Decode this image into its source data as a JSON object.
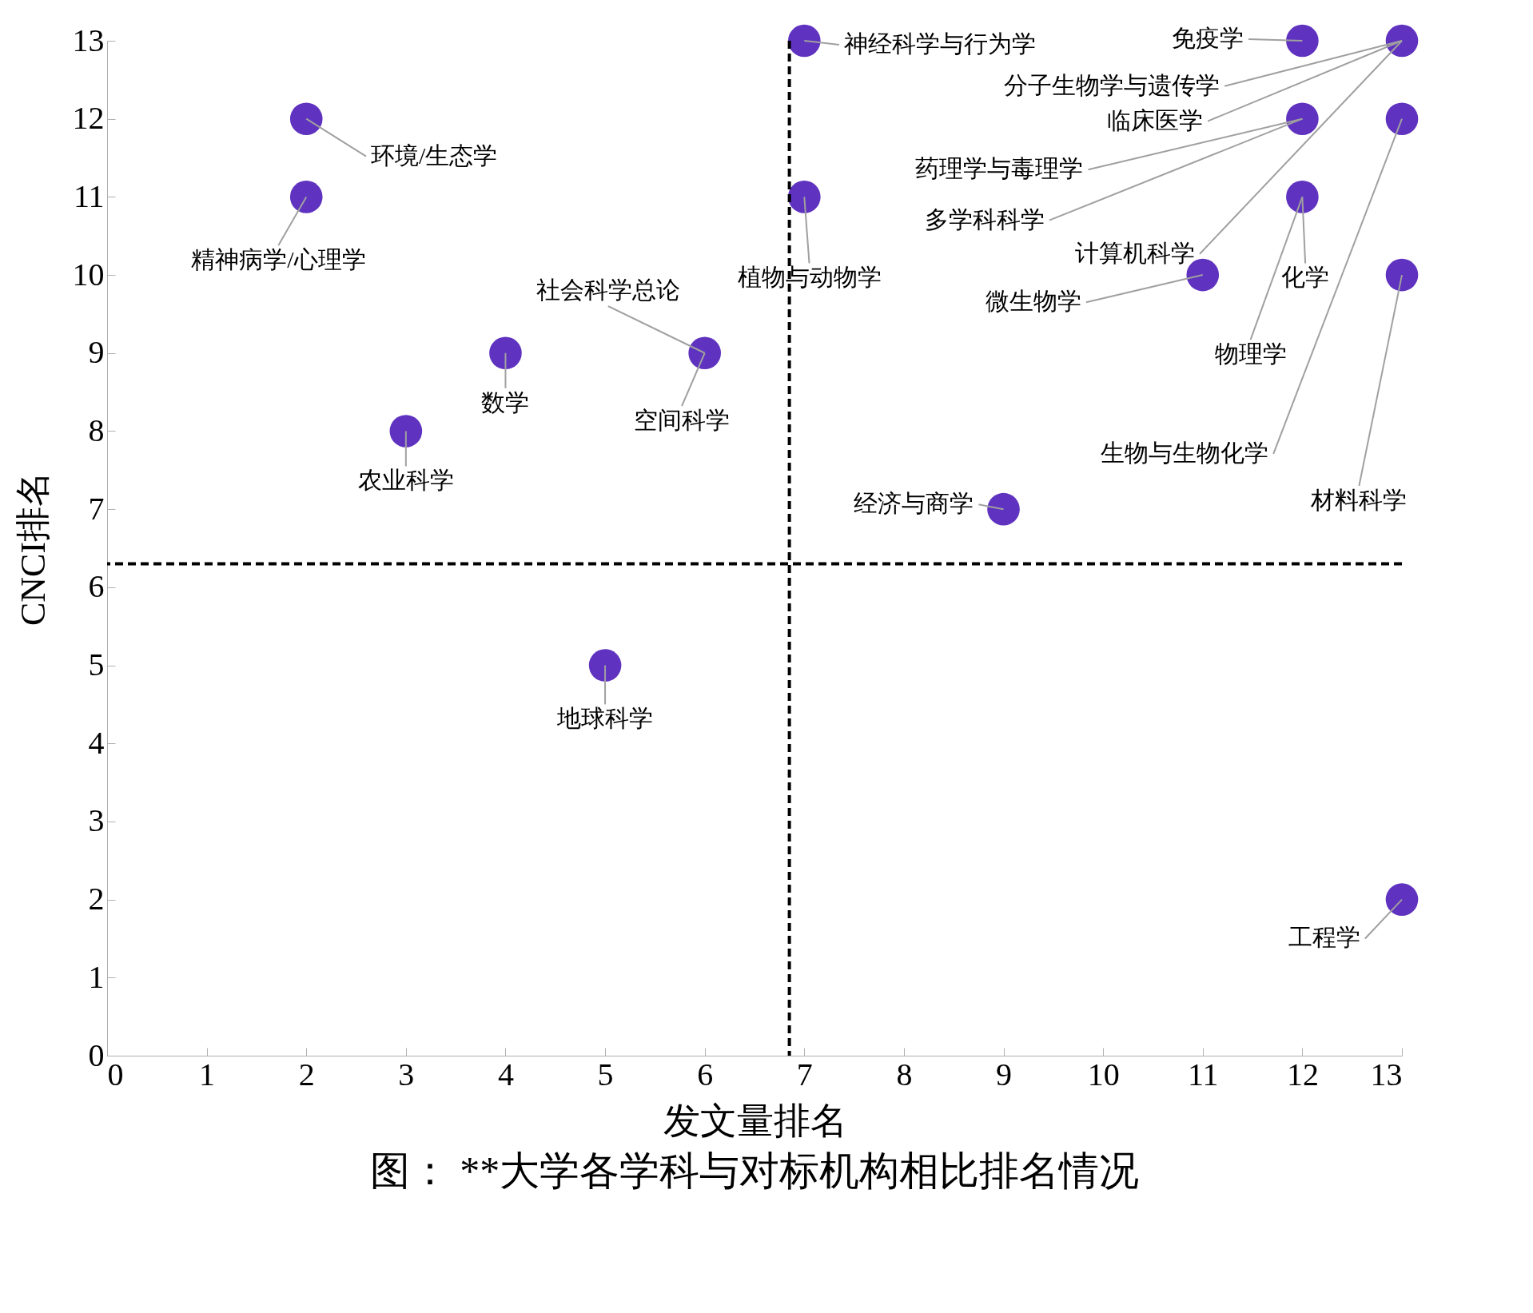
{
  "chart_data": {
    "type": "scatter",
    "title": "图：  **大学各学科与对标机构相比排名情况",
    "xlabel": "发文量排名",
    "ylabel": "CNCI排名",
    "x": [
      2,
      2,
      3,
      4,
      5,
      6,
      7,
      7,
      9,
      11,
      12,
      12,
      12,
      13,
      13,
      13,
      13
    ],
    "series": [
      {
        "color": "#5f32bf",
        "values": [
          12,
          11,
          8,
          9,
          5,
          9,
          13,
          11,
          7,
          10,
          13,
          12,
          11,
          13,
          12,
          10,
          2
        ]
      }
    ],
    "xlim": [
      0,
      13
    ],
    "ylim": [
      0,
      13
    ],
    "xticks": [
      0,
      1,
      2,
      3,
      4,
      5,
      6,
      7,
      8,
      9,
      10,
      11,
      12,
      13
    ],
    "yticks": [
      0,
      1,
      2,
      3,
      4,
      5,
      6,
      7,
      8,
      9,
      10,
      11,
      12,
      13
    ],
    "grid": false,
    "marker": "circle",
    "ref_lines": [
      {
        "axis": "x",
        "value": 6.85,
        "line_style": "dashed",
        "color": "#000000"
      },
      {
        "axis": "y",
        "value": 6.3,
        "line_style": "dashed",
        "color": "#000000"
      }
    ],
    "annotations": [
      {
        "text": "环境/生态学",
        "x": 2,
        "y": 12
      },
      {
        "text": "精神病学/心理学",
        "x": 2,
        "y": 11
      },
      {
        "text": "农业科学",
        "x": 3,
        "y": 8
      },
      {
        "text": "数学",
        "x": 4,
        "y": 9
      },
      {
        "text": "地球科学",
        "x": 5,
        "y": 5
      },
      {
        "text": "社会科学总论",
        "x": 6,
        "y": 9
      },
      {
        "text": "空间科学",
        "x": 6,
        "y": 9
      },
      {
        "text": "神经科学与行为学",
        "x": 7,
        "y": 13
      },
      {
        "text": "植物与动物学",
        "x": 7,
        "y": 11
      },
      {
        "text": "经济与商学",
        "x": 9,
        "y": 7
      },
      {
        "text": "免疫学",
        "x": 12,
        "y": 13
      },
      {
        "text": "分子生物学与遗传学",
        "x": 13,
        "y": 13
      },
      {
        "text": "临床医学",
        "x": 13,
        "y": 13
      },
      {
        "text": "药理学与毒理学",
        "x": 12,
        "y": 12
      },
      {
        "text": "多学科科学",
        "x": 12,
        "y": 12
      },
      {
        "text": "计算机科学",
        "x": 13,
        "y": 13
      },
      {
        "text": "微生物学",
        "x": 11,
        "y": 10
      },
      {
        "text": "化学",
        "x": 12,
        "y": 11
      },
      {
        "text": "物理学",
        "x": 12,
        "y": 11
      },
      {
        "text": "生物与生物化学",
        "x": 13,
        "y": 12
      },
      {
        "text": "材料科学",
        "x": 13,
        "y": 10
      },
      {
        "text": "工程学",
        "x": 13,
        "y": 2
      }
    ]
  }
}
